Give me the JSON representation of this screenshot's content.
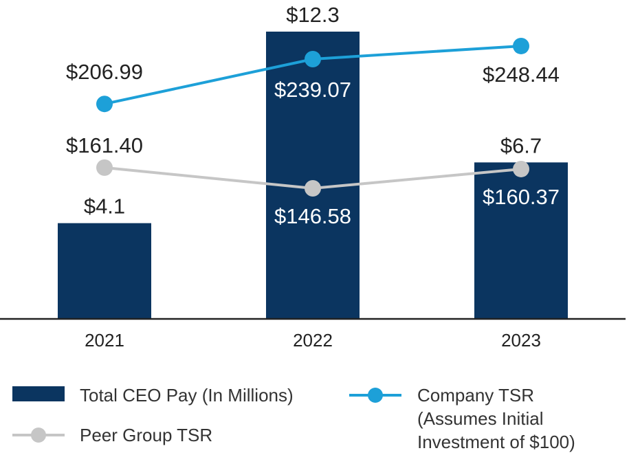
{
  "chart_data": {
    "type": "bar",
    "categories": [
      "2021",
      "2022",
      "2023"
    ],
    "bar_series": {
      "name": "Total CEO Pay (In Millions)",
      "values": [
        4.1,
        12.3,
        6.7
      ],
      "labels": [
        "$4.1",
        "$12.3",
        "$6.7"
      ],
      "color": "#0b3560"
    },
    "line_series": [
      {
        "name": "Company TSR",
        "values": [
          206.99,
          239.07,
          248.44
        ],
        "labels": [
          "$206.99",
          "$239.07",
          "$248.44"
        ],
        "color": "#1da0d8"
      },
      {
        "name": "Peer Group TSR",
        "values": [
          161.4,
          146.58,
          160.37
        ],
        "labels": [
          "$161.40",
          "$146.58",
          "$160.37"
        ],
        "color": "#c6c6c6"
      }
    ],
    "bar_ylim": [
      0,
      12.3
    ],
    "line_ylim": [
      0,
      300
    ],
    "grid": false,
    "legend": {
      "bar": "Total CEO Pay (In Millions)",
      "company_lines": [
        "Company TSR",
        "(Assumes Initial",
        "Investment of $100)"
      ],
      "peer": "Peer Group TSR"
    }
  }
}
